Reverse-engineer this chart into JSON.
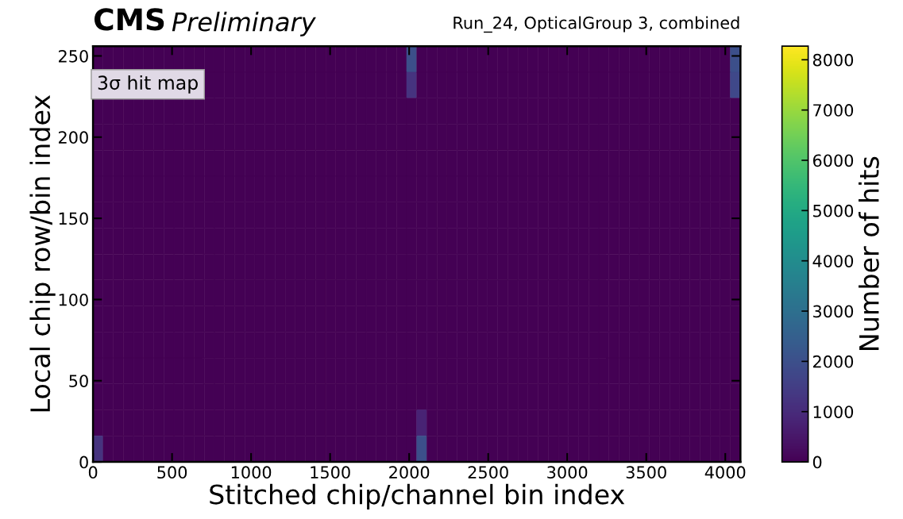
{
  "chart_data": {
    "type": "heatmap",
    "title": "CMS",
    "subtitle": "Preliminary",
    "xlabel": "Stitched chip/channel bin index",
    "ylabel": "Local chip row/bin index",
    "clabel": "Number of hits",
    "annotations": [
      "Run_24, OpticalGroup 3, combined",
      "3σ hit map"
    ],
    "xlim": [
      0,
      4096
    ],
    "ylim": [
      0,
      256
    ],
    "xticks": [
      0,
      500,
      1000,
      1500,
      2000,
      2500,
      3000,
      3500,
      4000
    ],
    "yticks": [
      0,
      50,
      100,
      150,
      200,
      250
    ],
    "clim": [
      0,
      8270
    ],
    "cticks": [
      0,
      1000,
      2000,
      3000,
      4000,
      5000,
      6000,
      7000,
      8000
    ],
    "grid": false,
    "cells": [
      [
        0,
        0,
        0,
        0,
        0,
        0,
        0,
        0,
        0,
        0,
        0,
        0,
        0,
        0,
        0,
        0,
        0,
        0,
        0,
        0,
        0,
        0,
        0,
        0,
        0,
        0,
        0,
        0,
        0,
        0,
        0,
        2000,
        0,
        0,
        0,
        0,
        0,
        0,
        0,
        0,
        0,
        0,
        0,
        0,
        0,
        0,
        0,
        0,
        0,
        0,
        0,
        0,
        0,
        0,
        0,
        0,
        0,
        0,
        0,
        0,
        0,
        0,
        0,
        2000
      ],
      [
        null,
        null,
        null,
        null,
        null,
        null,
        null,
        null,
        null,
        null,
        null,
        0,
        0,
        0,
        0,
        0,
        0,
        0,
        0,
        0,
        0,
        0,
        0,
        0,
        0,
        0,
        0,
        0,
        0,
        0,
        0,
        1200,
        0,
        0,
        0,
        0,
        0,
        0,
        0,
        0,
        0,
        0,
        0,
        0,
        0,
        0,
        0,
        0,
        0,
        0,
        0,
        0,
        0,
        0,
        0,
        0,
        0,
        0,
        0,
        0,
        0,
        0,
        0,
        1800
      ],
      [
        0,
        0,
        0,
        0,
        0,
        0,
        0,
        0,
        0,
        0,
        0,
        0,
        0,
        0,
        0,
        0,
        0,
        0,
        0,
        0,
        0,
        0,
        0,
        0,
        0,
        0,
        0,
        0,
        0,
        0,
        0,
        0,
        0,
        0,
        0,
        0,
        0,
        0,
        0,
        0,
        0,
        0,
        0,
        0,
        0,
        0,
        0,
        0,
        0,
        0,
        0,
        0,
        0,
        0,
        0,
        0,
        0,
        0,
        0,
        0,
        0,
        0,
        0,
        0
      ],
      [
        0,
        0,
        0,
        0,
        0,
        0,
        0,
        0,
        0,
        0,
        0,
        0,
        0,
        0,
        0,
        0,
        0,
        0,
        0,
        0,
        0,
        0,
        0,
        0,
        0,
        0,
        0,
        0,
        0,
        0,
        0,
        0,
        0,
        0,
        0,
        0,
        0,
        0,
        0,
        0,
        0,
        0,
        0,
        0,
        0,
        0,
        0,
        0,
        0,
        0,
        0,
        0,
        0,
        0,
        0,
        0,
        0,
        0,
        0,
        0,
        0,
        0,
        0,
        0
      ],
      [
        0,
        0,
        0,
        0,
        0,
        0,
        0,
        0,
        0,
        0,
        0,
        0,
        0,
        0,
        0,
        0,
        0,
        0,
        0,
        0,
        0,
        0,
        0,
        0,
        0,
        0,
        0,
        0,
        0,
        0,
        0,
        0,
        0,
        0,
        0,
        0,
        0,
        0,
        0,
        0,
        0,
        0,
        0,
        0,
        0,
        0,
        0,
        0,
        0,
        0,
        0,
        0,
        0,
        0,
        0,
        0,
        0,
        0,
        0,
        0,
        0,
        0,
        0,
        0
      ],
      [
        0,
        0,
        0,
        0,
        0,
        0,
        0,
        0,
        0,
        0,
        0,
        0,
        0,
        0,
        0,
        0,
        0,
        0,
        0,
        0,
        0,
        0,
        0,
        0,
        0,
        0,
        0,
        0,
        0,
        0,
        0,
        0,
        0,
        0,
        0,
        0,
        0,
        0,
        0,
        0,
        0,
        0,
        0,
        0,
        0,
        0,
        0,
        0,
        0,
        0,
        0,
        0,
        0,
        0,
        0,
        0,
        0,
        0,
        0,
        0,
        0,
        0,
        0,
        0
      ],
      [
        0,
        0,
        0,
        0,
        0,
        0,
        0,
        0,
        0,
        0,
        0,
        0,
        0,
        0,
        0,
        0,
        0,
        0,
        0,
        0,
        0,
        0,
        0,
        0,
        0,
        0,
        0,
        0,
        0,
        0,
        0,
        0,
        0,
        0,
        0,
        0,
        0,
        0,
        0,
        0,
        0,
        0,
        0,
        0,
        0,
        0,
        0,
        0,
        0,
        0,
        0,
        0,
        0,
        0,
        0,
        0,
        0,
        0,
        0,
        0,
        0,
        0,
        0,
        0
      ],
      [
        0,
        0,
        0,
        0,
        0,
        0,
        0,
        0,
        0,
        0,
        0,
        0,
        0,
        0,
        0,
        0,
        0,
        0,
        0,
        0,
        0,
        0,
        0,
        0,
        0,
        0,
        0,
        0,
        0,
        0,
        0,
        0,
        0,
        0,
        0,
        0,
        0,
        0,
        0,
        0,
        0,
        0,
        0,
        0,
        0,
        0,
        0,
        0,
        0,
        0,
        0,
        0,
        0,
        0,
        0,
        0,
        0,
        0,
        0,
        0,
        0,
        0,
        0,
        0
      ],
      [
        0,
        0,
        0,
        0,
        0,
        0,
        0,
        0,
        0,
        0,
        0,
        0,
        0,
        0,
        0,
        0,
        0,
        0,
        0,
        0,
        0,
        0,
        0,
        0,
        0,
        0,
        0,
        0,
        0,
        0,
        0,
        0,
        0,
        0,
        0,
        0,
        0,
        0,
        0,
        0,
        0,
        0,
        0,
        0,
        0,
        0,
        0,
        0,
        0,
        0,
        0,
        0,
        0,
        0,
        0,
        0,
        0,
        0,
        0,
        0,
        0,
        0,
        0,
        0
      ],
      [
        0,
        0,
        0,
        0,
        0,
        0,
        0,
        0,
        0,
        0,
        0,
        0,
        0,
        0,
        0,
        0,
        0,
        0,
        0,
        0,
        0,
        0,
        0,
        0,
        0,
        0,
        0,
        0,
        0,
        0,
        0,
        0,
        0,
        0,
        0,
        0,
        0,
        0,
        0,
        0,
        0,
        0,
        0,
        0,
        0,
        0,
        0,
        0,
        0,
        0,
        0,
        0,
        0,
        0,
        0,
        0,
        0,
        0,
        0,
        0,
        0,
        0,
        0,
        0
      ],
      [
        0,
        0,
        0,
        0,
        0,
        0,
        0,
        0,
        0,
        0,
        0,
        0,
        0,
        0,
        0,
        0,
        0,
        0,
        0,
        0,
        0,
        0,
        0,
        0,
        0,
        0,
        0,
        0,
        0,
        0,
        0,
        0,
        0,
        0,
        0,
        0,
        0,
        0,
        0,
        0,
        0,
        0,
        0,
        0,
        0,
        0,
        0,
        0,
        0,
        0,
        0,
        0,
        0,
        0,
        0,
        0,
        0,
        0,
        0,
        0,
        0,
        0,
        0,
        0
      ],
      [
        0,
        0,
        0,
        0,
        0,
        0,
        0,
        0,
        0,
        0,
        0,
        0,
        0,
        0,
        0,
        0,
        0,
        0,
        0,
        0,
        0,
        0,
        0,
        0,
        0,
        0,
        0,
        0,
        0,
        0,
        0,
        0,
        0,
        0,
        0,
        0,
        0,
        0,
        0,
        0,
        0,
        0,
        0,
        0,
        0,
        0,
        0,
        0,
        0,
        0,
        0,
        0,
        0,
        0,
        0,
        0,
        0,
        0,
        0,
        0,
        0,
        0,
        0,
        0
      ],
      [
        0,
        0,
        0,
        0,
        0,
        0,
        0,
        0,
        0,
        0,
        0,
        0,
        0,
        0,
        0,
        0,
        0,
        0,
        0,
        0,
        0,
        0,
        0,
        0,
        0,
        0,
        0,
        0,
        0,
        0,
        0,
        0,
        0,
        0,
        0,
        0,
        0,
        0,
        0,
        0,
        0,
        0,
        0,
        0,
        0,
        0,
        0,
        0,
        0,
        0,
        0,
        0,
        0,
        0,
        0,
        0,
        0,
        0,
        0,
        0,
        0,
        0,
        0,
        0
      ],
      [
        0,
        0,
        0,
        0,
        0,
        0,
        0,
        0,
        0,
        0,
        0,
        0,
        0,
        0,
        0,
        0,
        0,
        0,
        0,
        0,
        0,
        0,
        0,
        0,
        0,
        0,
        0,
        0,
        0,
        0,
        0,
        0,
        0,
        0,
        0,
        0,
        0,
        0,
        0,
        0,
        0,
        0,
        0,
        0,
        0,
        0,
        0,
        0,
        0,
        0,
        0,
        0,
        0,
        0,
        0,
        0,
        0,
        0,
        0,
        0,
        0,
        0,
        0,
        0
      ],
      [
        0,
        0,
        0,
        0,
        0,
        0,
        0,
        0,
        0,
        0,
        0,
        0,
        0,
        0,
        0,
        0,
        0,
        0,
        0,
        0,
        0,
        0,
        0,
        0,
        0,
        0,
        0,
        0,
        0,
        0,
        0,
        0,
        800,
        0,
        0,
        0,
        0,
        0,
        0,
        0,
        0,
        0,
        0,
        0,
        0,
        0,
        0,
        0,
        0,
        0,
        0,
        0,
        0,
        0,
        0,
        0,
        0,
        0,
        0,
        0,
        0,
        0,
        0,
        0
      ],
      [
        1200,
        0,
        0,
        0,
        0,
        0,
        0,
        0,
        0,
        0,
        0,
        0,
        0,
        0,
        0,
        0,
        0,
        0,
        0,
        0,
        0,
        0,
        0,
        0,
        0,
        0,
        0,
        0,
        0,
        0,
        0,
        0,
        2000,
        0,
        0,
        0,
        0,
        0,
        0,
        0,
        0,
        0,
        0,
        0,
        0,
        0,
        0,
        0,
        0,
        0,
        0,
        0,
        0,
        0,
        0,
        0,
        0,
        0,
        0,
        0,
        0,
        0,
        0,
        0
      ]
    ]
  }
}
